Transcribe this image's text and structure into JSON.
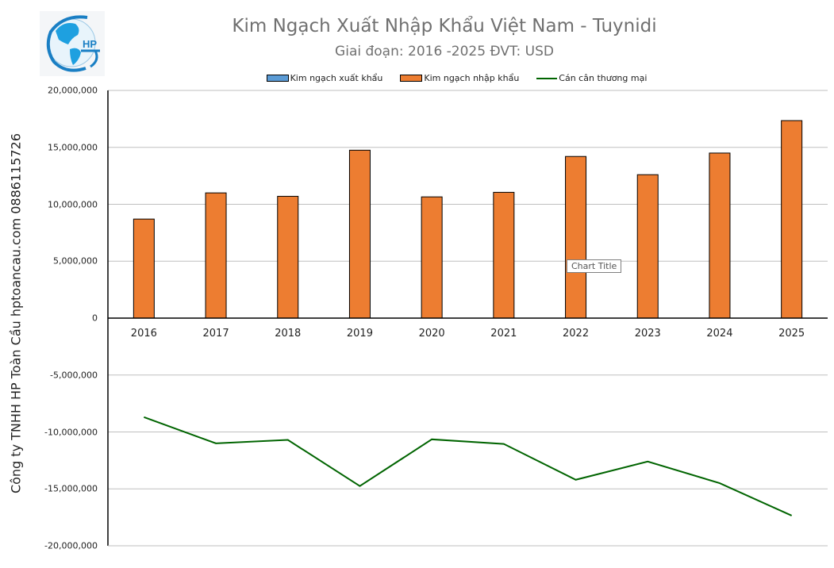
{
  "header": {
    "title": "Kim Ngạch Xuất Nhập Khẩu Việt Nam - Tuynidi",
    "subtitle": "Giai đoạn: 2016 -2025  ĐVT: USD",
    "logo_text": "HP"
  },
  "side_label": "Công ty TNHH HP Toàn Cầu hptoancau.com 0886115726",
  "tooltip": "Chart Title",
  "legend": [
    {
      "label": "Kim ngạch xuất khẩu",
      "color": "#5b9bd5",
      "kind": "bar"
    },
    {
      "label": "Kim ngạch nhập khẩu",
      "color": "#ed7d31",
      "kind": "bar"
    },
    {
      "label": "Cán cân thương mại",
      "color": "#006400",
      "kind": "line"
    }
  ],
  "y_ticks": [
    "20,000,000",
    "15,000,000",
    "10,000,000",
    "5,000,000",
    "0",
    "-5,000,000",
    "-10,000,000",
    "-15,000,000",
    "-20,000,000"
  ],
  "x_ticks": [
    "2016",
    "2017",
    "2018",
    "2019",
    "2020",
    "2021",
    "2022",
    "2023",
    "2024",
    "2025"
  ],
  "chart_data": {
    "type": "bar",
    "title": "Kim Ngạch Xuất Nhập Khẩu Việt Nam - Tuynidi",
    "subtitle": "Giai đoạn: 2016 -2025  ĐVT: USD",
    "xlabel": "",
    "ylabel": "",
    "ylim": [
      -20000000,
      20000000
    ],
    "grid": true,
    "legend_position": "top",
    "categories": [
      "2016",
      "2017",
      "2018",
      "2019",
      "2020",
      "2021",
      "2022",
      "2023",
      "2024",
      "2025"
    ],
    "series": [
      {
        "name": "Kim ngạch xuất khẩu",
        "type": "bar",
        "color": "#5b9bd5",
        "values": [
          0,
          0,
          0,
          0,
          0,
          0,
          0,
          0,
          0,
          0
        ]
      },
      {
        "name": "Kim ngạch nhập khẩu",
        "type": "bar",
        "color": "#ed7d31",
        "values": [
          8700000,
          11000000,
          10700000,
          14750000,
          10650000,
          11050000,
          14200000,
          12600000,
          14500000,
          17350000
        ]
      },
      {
        "name": "Cán cân thương mại",
        "type": "line",
        "color": "#006400",
        "values": [
          -8700000,
          -11000000,
          -10700000,
          -14750000,
          -10650000,
          -11050000,
          -14200000,
          -12600000,
          -14500000,
          -17350000
        ]
      }
    ]
  }
}
